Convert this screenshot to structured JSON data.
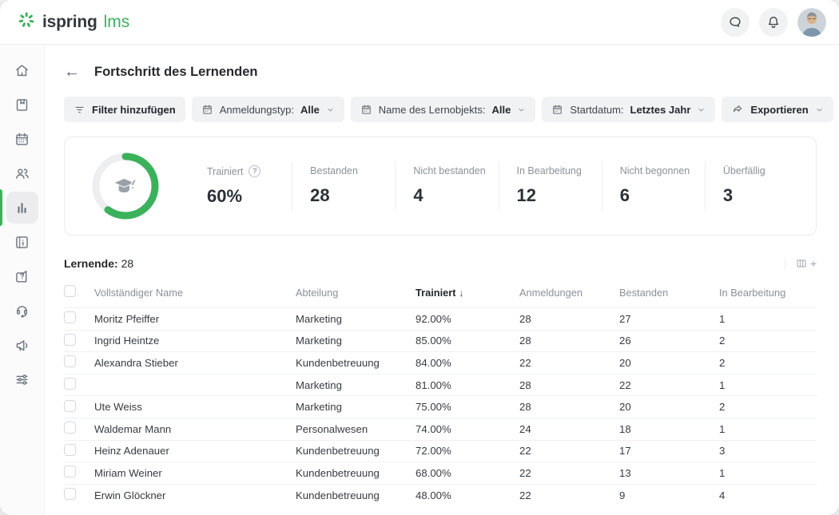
{
  "header": {
    "brand_name": "ispring",
    "brand_suffix": "lms",
    "icons": [
      "spark-logo-icon",
      "chat-icon",
      "bell-icon",
      "avatar"
    ]
  },
  "sidebar": {
    "icons": [
      "home-icon",
      "book-icon",
      "calendar-icon",
      "users-icon",
      "reports-icon",
      "info-panel-icon",
      "help-icon",
      "support-icon",
      "announcements-icon",
      "settings-icon"
    ],
    "active": "reports-icon"
  },
  "page": {
    "back": "←",
    "title": "Fortschritt des Lernenden"
  },
  "filters": {
    "add_label": "Filter hinzufügen",
    "chips": [
      {
        "label": "Anmeldungstyp:",
        "value": "Alle"
      },
      {
        "label": "Name des Lernobjekts:",
        "value": "Alle"
      },
      {
        "label": "Startdatum:",
        "value": "Letztes Jahr"
      }
    ],
    "export_label": "Exportieren",
    "more_label": "•••"
  },
  "summary": {
    "donut_percent": 60,
    "items": [
      {
        "label": "Trainiert",
        "value": "60%"
      },
      {
        "label": "Bestanden",
        "value": "28"
      },
      {
        "label": "Nicht bestanden",
        "value": "4"
      },
      {
        "label": "In Bearbeitung",
        "value": "12"
      },
      {
        "label": "Nicht begonnen",
        "value": "6"
      },
      {
        "label": "Überfällig",
        "value": "3"
      }
    ],
    "help_glyph": "?"
  },
  "learners": {
    "label": "Lernende:",
    "count": "28",
    "columns_plus": "+"
  },
  "table": {
    "columns": [
      "Vollständiger Name",
      "Abteilung",
      "Trainiert",
      "Anmeldungen",
      "Bestanden",
      "In Bearbeitung"
    ],
    "sorted_column": "Trainiert",
    "sort_arrow": "↓",
    "rows": [
      {
        "name": "Moritz Pfeiffer",
        "department": "Marketing",
        "trained": "92.00%",
        "enrollments": "28",
        "passed": "27",
        "in_progress": "1"
      },
      {
        "name": "Ingrid Heintze",
        "department": "Marketing",
        "trained": "85.00%",
        "enrollments": "28",
        "passed": "26",
        "in_progress": "2"
      },
      {
        "name": "Alexandra Stieber",
        "department": "Kundenbetreuung",
        "trained": "84.00%",
        "enrollments": "22",
        "passed": "20",
        "in_progress": "2"
      },
      {
        "name": "",
        "department": "Marketing",
        "trained": "81.00%",
        "enrollments": "28",
        "passed": "22",
        "in_progress": "1"
      },
      {
        "name": "Ute Weiss",
        "department": "Marketing",
        "trained": "75.00%",
        "enrollments": "28",
        "passed": "20",
        "in_progress": "2"
      },
      {
        "name": "Waldemar Mann",
        "department": "Personalwesen",
        "trained": "74.00%",
        "enrollments": "24",
        "passed": "18",
        "in_progress": "1"
      },
      {
        "name": "Heinz Adenauer",
        "department": "Kundenbetreuung",
        "trained": "72.00%",
        "enrollments": "22",
        "passed": "17",
        "in_progress": "3"
      },
      {
        "name": "Miriam Weiner",
        "department": "Kundenbetreuung",
        "trained": "68.00%",
        "enrollments": "22",
        "passed": "13",
        "in_progress": "1"
      },
      {
        "name": "Erwin Glöckner",
        "department": "Kundenbetreuung",
        "trained": "48.00%",
        "enrollments": "22",
        "passed": "9",
        "in_progress": "4"
      }
    ]
  },
  "colors": {
    "accent_green": "#3cb15c",
    "donut_track": "#eceef0",
    "icon_gray": "#6a737b",
    "chip_bg": "#f1f2f3"
  }
}
